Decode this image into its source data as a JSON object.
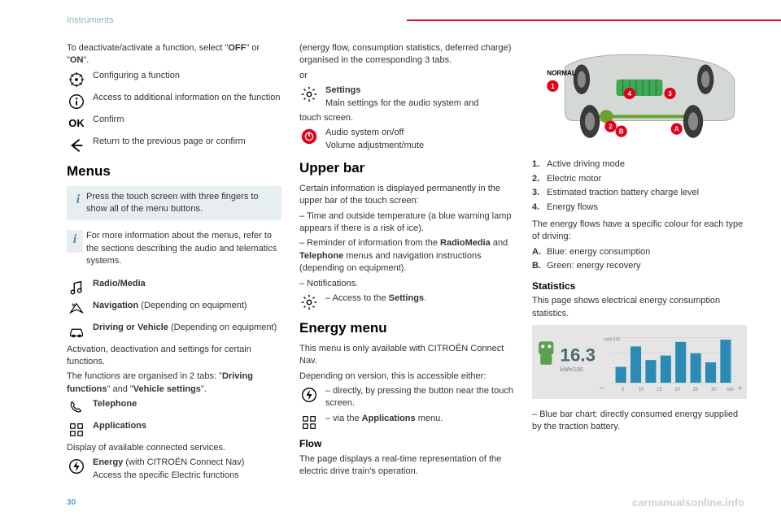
{
  "header": {
    "section": "Instruments",
    "page_number": "30"
  },
  "watermark": "carmanualsonline.info",
  "col1": {
    "intro_pre": "To deactivate/activate a function, select \"",
    "off": "OFF",
    "intro_mid": "\" or \"",
    "on": "ON",
    "intro_post": "\".",
    "config": "Configuring a function",
    "access": "Access to additional information on the function",
    "confirm": "Confirm",
    "return_": "Return to the previous page or confirm",
    "menus_h": "Menus",
    "tip1": "Press the touch screen with three fingers to show all of the menu buttons.",
    "tip2": "For more information about the menus, refer to the sections describing the audio and telematics systems.",
    "radio": "Radio/Media",
    "nav_pre": "Navigation",
    "nav_post": " (Depending on equipment)",
    "drive_pre": "Driving or Vehicle",
    "drive_post": " (Depending on equipment)",
    "activation": "Activation, deactivation and settings for certain functions.",
    "tabs_pre": "The functions are organised in 2 tabs: \"",
    "tabs_b1": "Driving functions",
    "tabs_mid": "\" and \"",
    "tabs_b2": "Vehicle settings",
    "tabs_post": "\".",
    "telephone": "Telephone",
    "applications": "Applications"
  },
  "col2": {
    "display": "Display of available connected services.",
    "energy_pre": "Energy",
    "energy_post": " (with CITROËN Connect Nav)",
    "energy_desc": "Access the specific Electric functions (energy flow, consumption statistics, deferred charge) organised in the corresponding 3 tabs.",
    "or": "or",
    "settings": "Settings",
    "settings_desc": "Main settings for the audio system and touch screen.",
    "audio1": "Audio system on/off",
    "audio2": "Volume adjustment/mute",
    "upper_h": "Upper bar",
    "upper_intro": "Certain information is displayed permanently in the upper bar of the touch screen:",
    "u1": "– Time and outside temperature (a blue warning lamp appears if there is a risk of ice).",
    "u2_pre": "– Reminder of information from the ",
    "u2_b1": "RadioMedia",
    "u2_mid": " and ",
    "u2_b2": "Telephone",
    "u2_post": " menus and navigation instructions (depending on equipment).",
    "u3": "– Notifications.",
    "u4_pre": "– Access to the ",
    "u4_b": "Settings",
    "u4_post": ".",
    "em_h": "Energy menu",
    "em_intro": "This menu is only available with CITROËN Connect Nav.",
    "em_dep": "Depending on version, this is accessible either:",
    "em1": "– directly, by pressing the button near the touch screen.",
    "em2_pre": "– via the ",
    "em2_b": "Applications",
    "em2_post": " menu."
  },
  "col3": {
    "flow_h": "Flow",
    "flow_intro": "The page displays a real-time representation of the electric drive train's operation.",
    "flow_img": {
      "mode_label": "NORMAL",
      "badge_color": "#e2001a",
      "body_color": "#d5d9d5",
      "battery_color": "#3fa855",
      "axle_color": "#6aa32e",
      "wheel_color": "#3a3a3a",
      "badges": [
        "1",
        "2",
        "3",
        "4",
        "A",
        "B"
      ]
    },
    "l1": "Active driving mode",
    "l2": "Electric motor",
    "l3": "Estimated traction battery charge level",
    "l4": "Energy flows",
    "colour_intro": "The energy flows have a specific colour for each type of driving:",
    "lA": "Blue: energy consumption",
    "lB": "Green: energy recovery",
    "stats_h": "Statistics",
    "stats_intro": "This page shows electrical energy consumption statistics.",
    "stats_chart": {
      "value": "16.3",
      "unit": "kWh/100",
      "xlabels": [
        "5",
        "10",
        "15",
        "20",
        "25",
        "30"
      ],
      "xunit": "min",
      "ymax_label": "kWh/100",
      "bars": [
        35,
        80,
        50,
        60,
        90,
        65,
        45,
        95
      ],
      "bar_color": "#2c8bb5",
      "bg_color": "#e5e5e5",
      "value_color": "#4c6a6f",
      "robot_color": "#5aa04f"
    },
    "stats_note": "– Blue bar chart: directly consumed energy supplied by the traction battery."
  }
}
